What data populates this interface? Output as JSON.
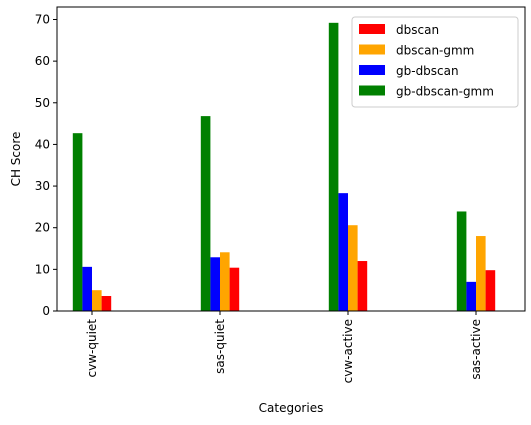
{
  "chart_data": {
    "type": "bar",
    "categories": [
      "cvw-quiet",
      "sas-quiet",
      "cvw-active",
      "sas-active"
    ],
    "series": [
      {
        "name": "dbscan",
        "color": "#ff0000",
        "values": [
          3.6,
          10.4,
          12.0,
          9.8
        ]
      },
      {
        "name": "dbscan-gmm",
        "color": "#ffa500",
        "values": [
          5.0,
          14.1,
          20.6,
          18.0
        ]
      },
      {
        "name": "gb-dbscan",
        "color": "#0000ff",
        "values": [
          10.6,
          12.9,
          28.3,
          7.0
        ]
      },
      {
        "name": "gb-dbscan-gmm",
        "color": "#008000",
        "values": [
          42.7,
          46.8,
          69.2,
          23.9
        ]
      }
    ],
    "draw_order": [
      "gb-dbscan-gmm",
      "gb-dbscan",
      "dbscan-gmm",
      "dbscan"
    ],
    "xlabel": "Categories",
    "ylabel": "CH Score",
    "ylim": [
      0,
      73
    ],
    "yticks": [
      0,
      10,
      20,
      30,
      40,
      50,
      60,
      70
    ],
    "grid": false,
    "legend_position": "top-right"
  }
}
